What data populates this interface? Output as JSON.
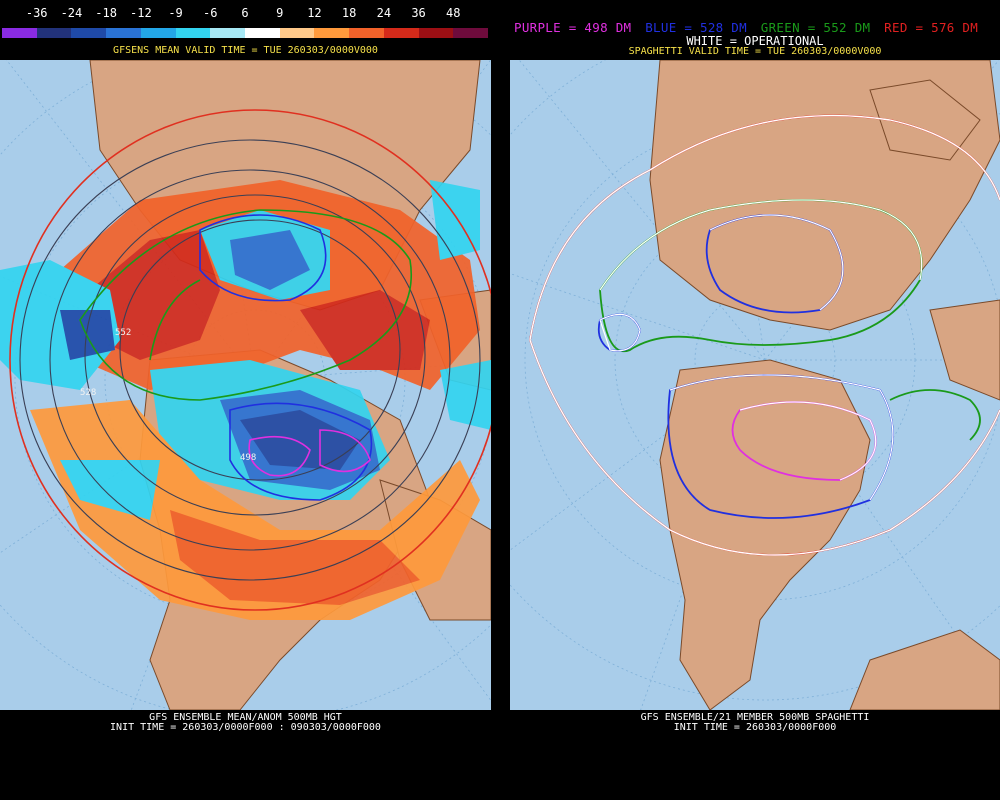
{
  "left_panel": {
    "colorbar": {
      "labels": [
        "-36",
        "-24",
        "-18",
        "-12",
        "-9",
        "-6",
        "6",
        "9",
        "12",
        "18",
        "24",
        "36",
        "48"
      ],
      "colors": [
        "#8a2be2",
        "#22327a",
        "#1f4aa8",
        "#2a73d6",
        "#23a7e8",
        "#33d4f0",
        "#a7e8f5",
        "#ffffff",
        "#ffc98a",
        "#ff9a3c",
        "#f2622a",
        "#d42a1a",
        "#9c0f14",
        "#6e0b3c"
      ]
    },
    "title": "GFSENS MEAN VALID TIME = TUE 260303/0000V000",
    "contour_labels": [
      "552",
      "528",
      "498"
    ],
    "footer_line1": "GFS ENSEMBLE MEAN/ANOM 500MB HGT",
    "footer_line2": "INIT TIME = 260303/0000F000 : 090303/0000F000"
  },
  "right_panel": {
    "legend": [
      {
        "text": "PURPLE = 498 DM",
        "color": "#e030e0"
      },
      {
        "text": "BLUE = 528 DM",
        "color": "#2030e0"
      },
      {
        "text": "GREEN = 552 DM",
        "color": "#1a9a1a"
      },
      {
        "text": "RED = 576 DM",
        "color": "#e02020"
      }
    ],
    "legend_line2": "WHITE = OPERATIONAL",
    "title": "SPAGHETTI VALID TIME = TUE 260303/0000V000",
    "footer_line1": "GFS ENSEMBLE/21 MEMBER 500MB SPAGHETTI",
    "footer_line2": "INIT TIME = 260303/0000F000"
  },
  "colors": {
    "ocean": "#a9cdea",
    "land": "#d8a583",
    "land_border": "#7a4a2a",
    "title_yellow": "#f5e04a",
    "white_text": "#ffffff"
  }
}
